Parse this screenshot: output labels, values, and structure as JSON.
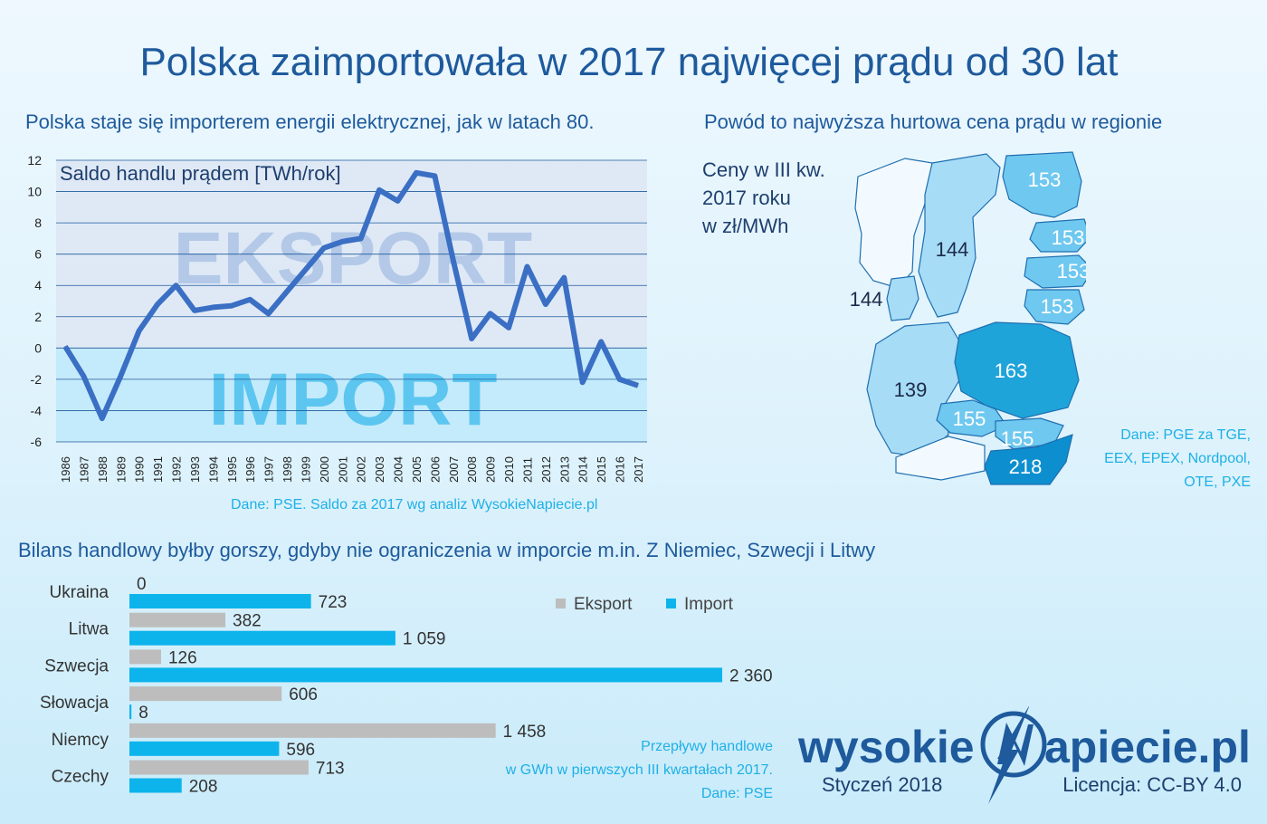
{
  "title": "Polska zaimportowała w 2017 najwięcej prądu od 30 lat",
  "line_chart": {
    "subtitle": "Polska staje się importerem energii elektrycznej, jak w latach 80.",
    "inset_label": "Saldo handlu prądem [TWh/rok]",
    "watermark_top": "EKSPORT",
    "watermark_bottom": "IMPORT",
    "source": "Dane: PSE. Saldo za 2017 wg analiz WysokieNapiecie.pl"
  },
  "map": {
    "subtitle": "Powód to najwyższa hurtowa cena prądu w regionie",
    "caption_lines": [
      "Ceny w III kw.",
      "2017 roku",
      "w zł/MWh"
    ],
    "source_lines": [
      "Dane: PGE za TGE,",
      "EEX, EPEX, Nordpool,",
      "OTE, PXE"
    ],
    "prices": [
      {
        "region": "Finlandia",
        "value": "153",
        "color": "#6fc8ef"
      },
      {
        "region": "Estonia",
        "value": "153",
        "color": "#6fc8ef"
      },
      {
        "region": "Łotwa",
        "value": "153",
        "color": "#6fc8ef"
      },
      {
        "region": "Litwa",
        "value": "153",
        "color": "#6fc8ef"
      },
      {
        "region": "Szwecja",
        "value": "144",
        "color": "#a6dcf6"
      },
      {
        "region": "Dania",
        "value": "144",
        "color": "#a6dcf6"
      },
      {
        "region": "Niemcy",
        "value": "139",
        "color": "#a6dcf6"
      },
      {
        "region": "Polska",
        "value": "163",
        "color": "#1fa4da"
      },
      {
        "region": "Czechy",
        "value": "155",
        "color": "#6fc8ef"
      },
      {
        "region": "Słowacja",
        "value": "155",
        "color": "#6fc8ef"
      },
      {
        "region": "Węgry",
        "value": "218",
        "color": "#0d8fcf"
      }
    ]
  },
  "bar_chart": {
    "subtitle": "Bilans handlowy byłby gorszy, gdyby nie ograniczenia w imporcie m.in. Z Niemiec, Szwecji i Litwy",
    "source_lines": [
      "Przepływy handlowe",
      "w GWh w pierwszych III kwartałach 2017.",
      "Dane: PSE"
    ]
  },
  "branding": {
    "logo_left": "wysokie",
    "logo_right": "apiecie.pl",
    "date": "Styczeń 2018",
    "license": "Licencja: CC-BY 4.0"
  },
  "chart_data": [
    {
      "type": "line",
      "title": "Saldo handlu prądem [TWh/rok]",
      "x": [
        1986,
        1987,
        1988,
        1989,
        1990,
        1991,
        1992,
        1993,
        1994,
        1995,
        1996,
        1997,
        1998,
        1999,
        2000,
        2001,
        2002,
        2003,
        2004,
        2005,
        2006,
        2007,
        2008,
        2009,
        2010,
        2011,
        2012,
        2013,
        2014,
        2015,
        2016,
        2017
      ],
      "series": [
        {
          "name": "Saldo",
          "color": "#3a6fc4",
          "values": [
            0.1,
            -1.8,
            -4.5,
            -1.8,
            1.1,
            2.8,
            4.0,
            2.4,
            2.6,
            2.7,
            3.1,
            2.2,
            3.6,
            5.0,
            6.4,
            6.8,
            7.0,
            10.1,
            9.4,
            11.2,
            11.0,
            5.6,
            0.6,
            2.2,
            1.3,
            5.2,
            2.8,
            4.5,
            -2.2,
            0.4,
            -2.0,
            -2.4
          ]
        }
      ],
      "ylim": [
        -6,
        12
      ],
      "yticks": [
        -6,
        -4,
        -2,
        0,
        2,
        4,
        6,
        8,
        10,
        12
      ],
      "grid": true
    },
    {
      "type": "bar",
      "orientation": "horizontal",
      "categories": [
        "Ukraina",
        "Litwa",
        "Szwecja",
        "Słowacja",
        "Niemcy",
        "Czechy"
      ],
      "series": [
        {
          "name": "Eksport",
          "color": "#bdbdbd",
          "values": [
            0,
            382,
            126,
            606,
            1458,
            713
          ],
          "labels": [
            "0",
            "382",
            "126",
            "606",
            "1 458",
            "713"
          ]
        },
        {
          "name": "Import",
          "color": "#0db4ec",
          "values": [
            723,
            1059,
            2360,
            8,
            596,
            208
          ],
          "labels": [
            "723",
            "1 059",
            "2 360",
            "8",
            "596",
            "208"
          ]
        }
      ],
      "legend": "top-right"
    }
  ]
}
